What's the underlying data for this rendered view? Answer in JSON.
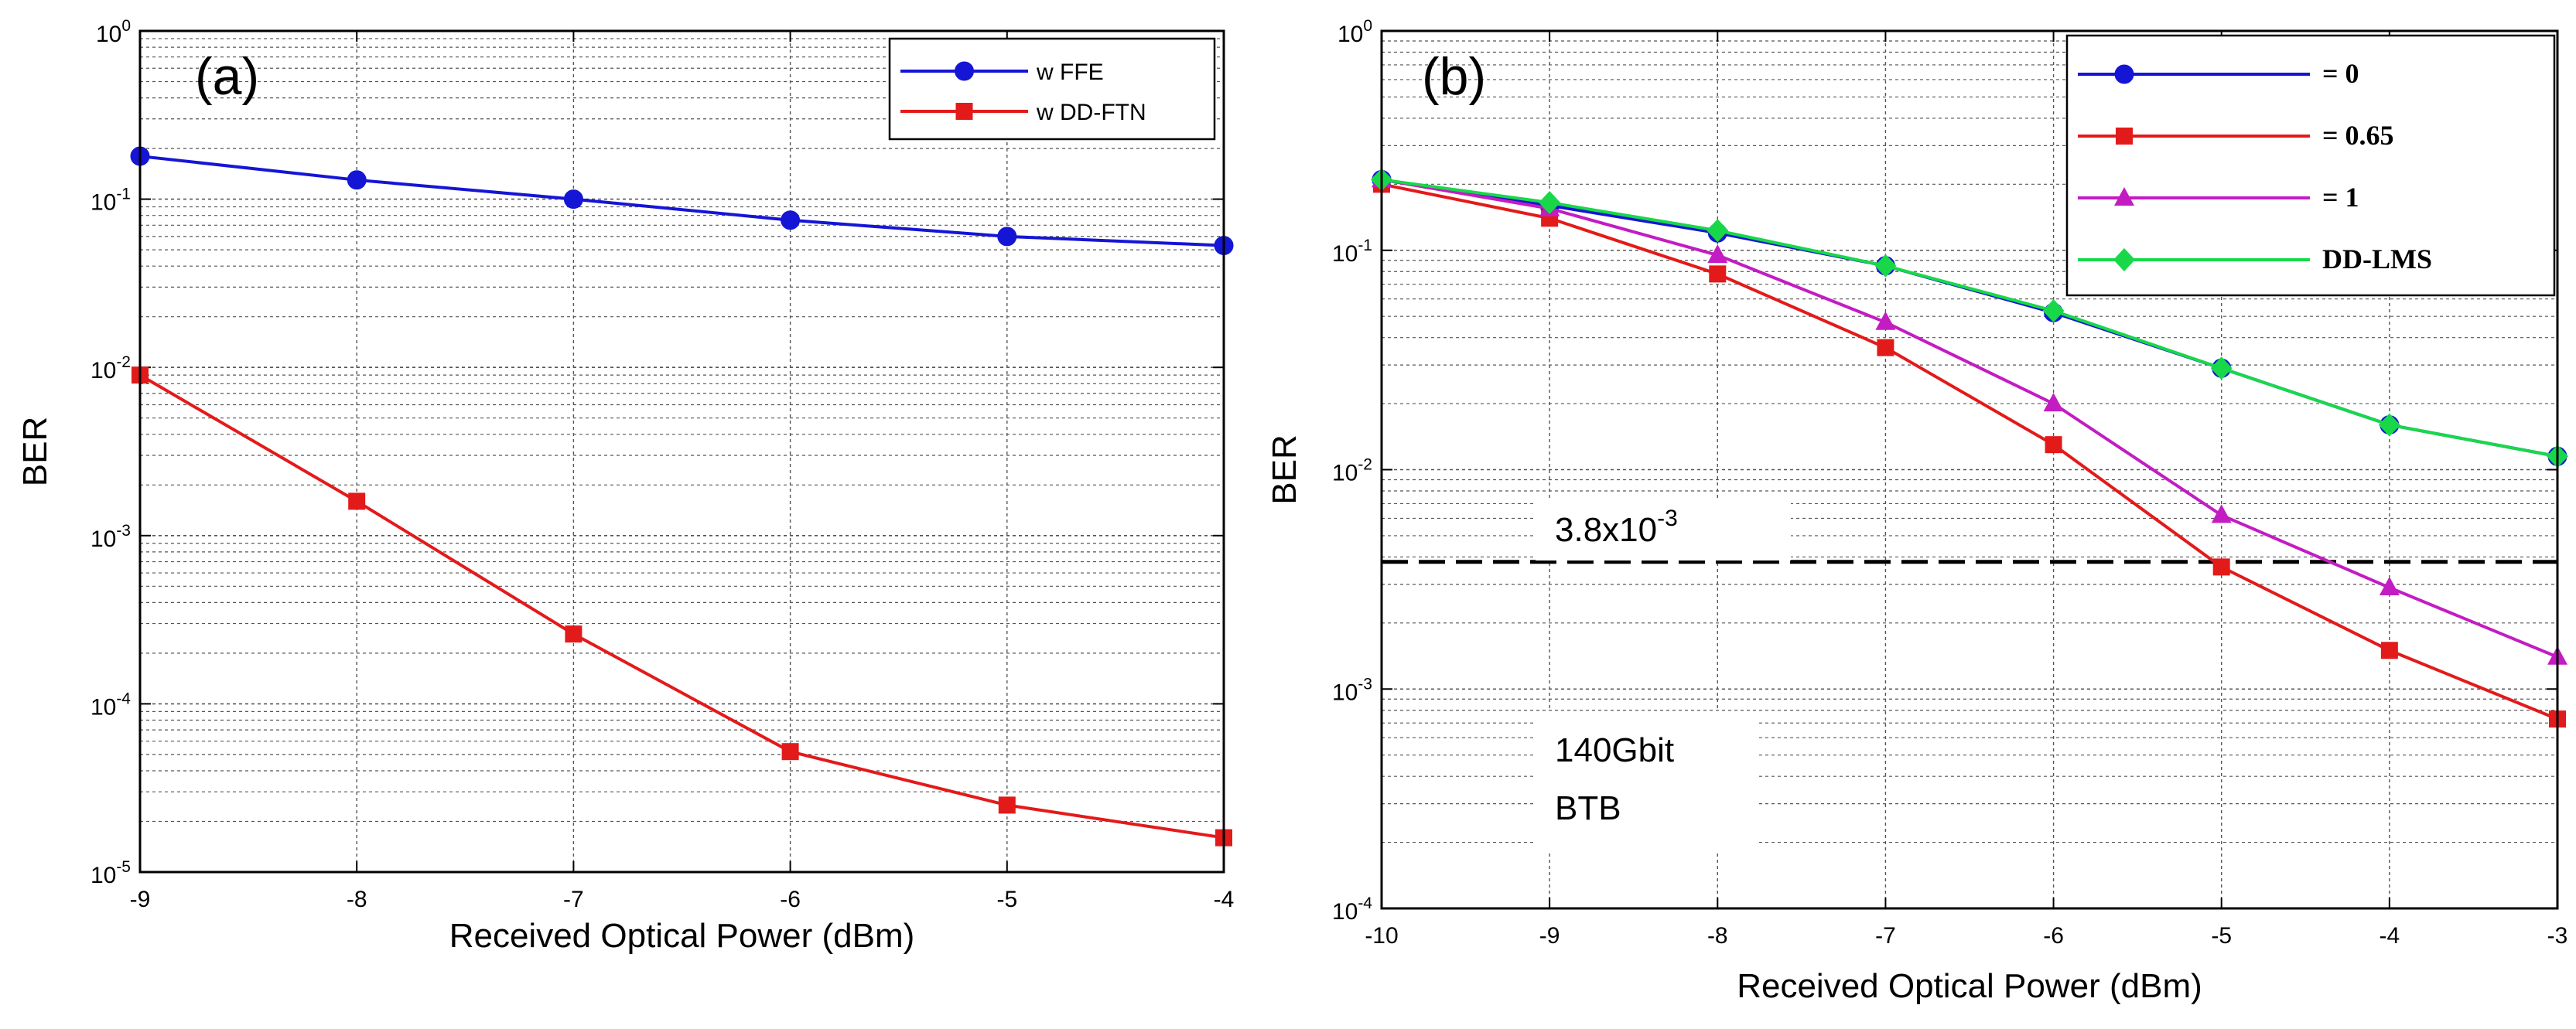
{
  "chart_data": [
    {
      "type": "line",
      "panel_label": "(a)",
      "xlabel": "Received Optical Power (dBm)",
      "ylabel": "BER",
      "xlim": [
        -9,
        -4
      ],
      "ylim": [
        1e-05,
        1
      ],
      "yscale": "log",
      "grid": true,
      "legend_position": "top-right",
      "xticks": [
        "-9",
        "-8",
        "-7",
        "-6",
        "-5",
        "-4"
      ],
      "yticks": [
        {
          "base": "10",
          "exp": "0"
        },
        {
          "base": "10",
          "exp": "-1"
        },
        {
          "base": "10",
          "exp": "-2"
        },
        {
          "base": "10",
          "exp": "-3"
        },
        {
          "base": "10",
          "exp": "-4"
        },
        {
          "base": "10",
          "exp": "-5"
        }
      ],
      "x": [
        -9,
        -8,
        -7,
        -6,
        -5,
        -4
      ],
      "series": [
        {
          "name": "w FFE",
          "color": "#1515d6",
          "marker": "circle",
          "values": [
            0.18,
            0.13,
            0.1,
            0.075,
            0.06,
            0.053
          ]
        },
        {
          "name": "w DD-FTN",
          "color": "#e31a1a",
          "marker": "square",
          "values": [
            0.009,
            0.0016,
            0.00026,
            5.2e-05,
            2.5e-05,
            1.6e-05
          ]
        }
      ]
    },
    {
      "type": "line",
      "panel_label": "(b)",
      "xlabel": "Received Optical Power (dBm)",
      "ylabel": "BER",
      "xlim": [
        -10,
        -3
      ],
      "ylim": [
        0.0001,
        1
      ],
      "yscale": "log",
      "grid": true,
      "legend_position": "top-right",
      "xticks": [
        "-10",
        "-9",
        "-8",
        "-7",
        "-6",
        "-5",
        "-4",
        "-3"
      ],
      "yticks": [
        {
          "base": "10",
          "exp": "0"
        },
        {
          "base": "10",
          "exp": "-1"
        },
        {
          "base": "10",
          "exp": "-2"
        },
        {
          "base": "10",
          "exp": "-3"
        },
        {
          "base": "10",
          "exp": "-4"
        }
      ],
      "x": [
        -10,
        -9,
        -8,
        -7,
        -6,
        -5,
        -4,
        -3
      ],
      "series": [
        {
          "name": "= 0",
          "color": "#1515d6",
          "marker": "circle",
          "values": [
            0.21,
            0.16,
            0.12,
            0.085,
            0.052,
            0.029,
            0.016,
            0.0115
          ]
        },
        {
          "name": "= 0.65",
          "color": "#e31a1a",
          "marker": "square",
          "values": [
            0.2,
            0.14,
            0.078,
            0.036,
            0.013,
            0.0036,
            0.0015,
            0.00073
          ]
        },
        {
          "name": "= 1",
          "color": "#c31cc3",
          "marker": "triangle",
          "values": [
            0.21,
            0.155,
            0.095,
            0.047,
            0.02,
            0.0062,
            0.0029,
            0.0014
          ]
        },
        {
          "name": "DD-LMS",
          "color": "#18d84a",
          "marker": "diamond",
          "values": [
            0.21,
            0.165,
            0.123,
            0.085,
            0.053,
            0.029,
            0.016,
            0.0115
          ]
        }
      ],
      "threshold": {
        "value": 0.0038,
        "label_base": "3.8x10",
        "label_exp": "-3"
      },
      "annotation": {
        "line1": "140Gbit",
        "line2": "BTB"
      }
    }
  ]
}
